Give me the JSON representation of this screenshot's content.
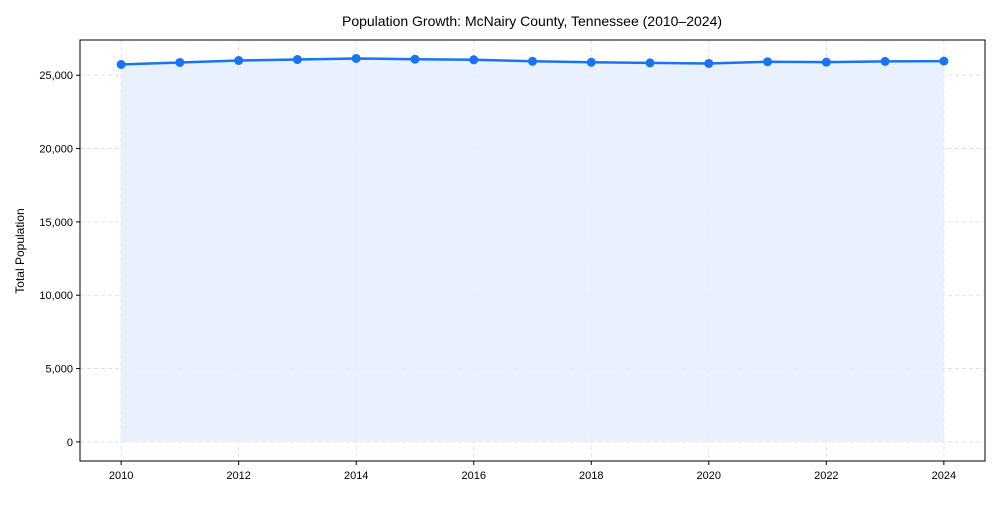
{
  "chart_data": {
    "type": "line",
    "title": "Population Growth: McNairy County, Tennessee (2010–2024)",
    "xlabel": "",
    "ylabel": "Total Population",
    "x": [
      2010,
      2011,
      2012,
      2013,
      2014,
      2015,
      2016,
      2017,
      2018,
      2019,
      2020,
      2021,
      2022,
      2023,
      2024
    ],
    "series": [
      {
        "name": "Total Population",
        "values": [
          25730,
          25870,
          26000,
          26070,
          26140,
          26090,
          26050,
          25950,
          25880,
          25840,
          25800,
          25920,
          25890,
          25940,
          25960
        ]
      }
    ],
    "xlim": [
      2009.3,
      2024.7
    ],
    "ylim": [
      -1300,
      27400
    ],
    "xticks": [
      2010,
      2012,
      2014,
      2016,
      2018,
      2020,
      2022,
      2024
    ],
    "xtick_labels": [
      "2010",
      "2012",
      "2014",
      "2016",
      "2018",
      "2020",
      "2022",
      "2024"
    ],
    "yticks": [
      0,
      5000,
      10000,
      15000,
      20000,
      25000
    ],
    "ytick_labels": [
      "0",
      "5,000",
      "10,000",
      "15,000",
      "20,000",
      "25,000"
    ],
    "grid": true,
    "fill_under": true,
    "colors": {
      "line": "#1a73f0",
      "fill": "#e6effd",
      "grid": "#d8dde6"
    }
  }
}
